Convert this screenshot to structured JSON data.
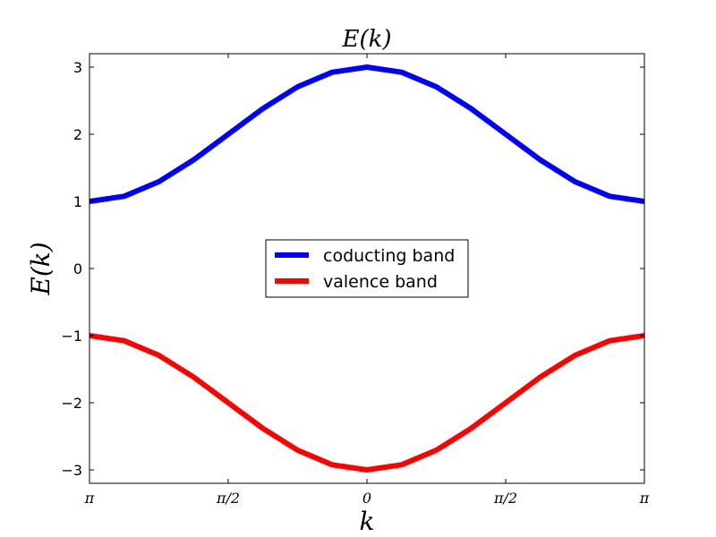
{
  "chart_data": {
    "type": "line",
    "title": "E(k)",
    "xlabel": "k",
    "ylabel": "E(k)",
    "xlim": [
      -3.14159,
      3.14159
    ],
    "ylim": [
      -3.2,
      3.2
    ],
    "xticks": [
      {
        "value": -3.14159,
        "label": "π"
      },
      {
        "value": -1.5708,
        "label": "π/2"
      },
      {
        "value": 0,
        "label": "0"
      },
      {
        "value": 1.5708,
        "label": "π/2"
      },
      {
        "value": 3.14159,
        "label": "π"
      }
    ],
    "yticks": [
      {
        "value": 3,
        "label": "3"
      },
      {
        "value": 2,
        "label": "2"
      },
      {
        "value": 1,
        "label": "1"
      },
      {
        "value": 0,
        "label": "0"
      },
      {
        "value": -1,
        "label": "−1"
      },
      {
        "value": -2,
        "label": "−2"
      },
      {
        "value": -3,
        "label": "−3"
      }
    ],
    "grid": false,
    "legend_placement": "center",
    "series": [
      {
        "name": "coducting band",
        "color": "#0000ff",
        "x": [
          -3.1416,
          -2.7489,
          -2.3562,
          -1.9635,
          -1.5708,
          -1.1781,
          -0.7854,
          -0.3927,
          0,
          0.3927,
          0.7854,
          1.1781,
          1.5708,
          1.9635,
          2.3562,
          2.7489,
          3.1416
        ],
        "y": [
          1.0,
          1.076,
          1.293,
          1.617,
          2.0,
          2.383,
          2.707,
          2.924,
          3.0,
          2.924,
          2.707,
          2.383,
          2.0,
          1.617,
          1.293,
          1.076,
          1.0
        ]
      },
      {
        "name": "valence band",
        "color": "#ff0000",
        "x": [
          -3.1416,
          -2.7489,
          -2.3562,
          -1.9635,
          -1.5708,
          -1.1781,
          -0.7854,
          -0.3927,
          0,
          0.3927,
          0.7854,
          1.1781,
          1.5708,
          1.9635,
          2.3562,
          2.7489,
          3.1416
        ],
        "y": [
          -1.0,
          -1.076,
          -1.293,
          -1.617,
          -2.0,
          -2.383,
          -2.707,
          -2.924,
          -3.0,
          -2.924,
          -2.707,
          -2.383,
          -2.0,
          -1.617,
          -1.293,
          -1.076,
          -1.0
        ]
      }
    ]
  }
}
